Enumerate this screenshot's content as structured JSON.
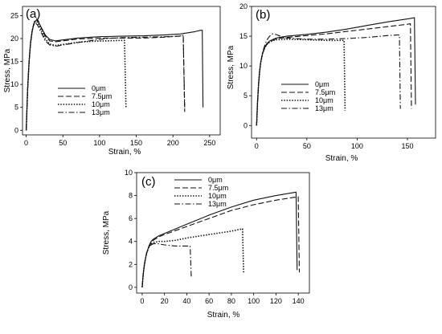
{
  "legend": [
    "0μm",
    "7.5μm",
    "10μm",
    "13μm"
  ],
  "chart_data": [
    {
      "type": "line",
      "panel_label": "(a)",
      "xlabel": "Strain, %",
      "ylabel": "Stress, MPa",
      "xlim": [
        -5,
        260
      ],
      "ylim": [
        -1,
        27
      ],
      "xticks": [
        0,
        50,
        100,
        150,
        200,
        250
      ],
      "yticks": [
        0,
        5,
        10,
        15,
        20,
        25
      ],
      "legend_position": "center-left",
      "series": [
        {
          "name": "0μm",
          "style": "solid",
          "points": [
            [
              0,
              0
            ],
            [
              2,
              9
            ],
            [
              4,
              15
            ],
            [
              6,
              19
            ],
            [
              8,
              21.5
            ],
            [
              10,
              23
            ],
            [
              12,
              23.8
            ],
            [
              14,
              24
            ],
            [
              16,
              23.8
            ],
            [
              18,
              23.2
            ],
            [
              22,
              22
            ],
            [
              26,
              20.8
            ],
            [
              32,
              19.8
            ],
            [
              40,
              19.5
            ],
            [
              50,
              19.7
            ],
            [
              70,
              20.1
            ],
            [
              100,
              20.4
            ],
            [
              130,
              20.5
            ],
            [
              160,
              20.6
            ],
            [
              190,
              20.8
            ],
            [
              210,
              21
            ],
            [
              230,
              21.5
            ],
            [
              238,
              21.8
            ],
            [
              240,
              21.8
            ],
            [
              241,
              5
            ]
          ]
        },
        {
          "name": "7.5μm",
          "style": "dashed",
          "points": [
            [
              0,
              0
            ],
            [
              2,
              9
            ],
            [
              4,
              15
            ],
            [
              6,
              19
            ],
            [
              8,
              21.5
            ],
            [
              10,
              23
            ],
            [
              12,
              24
            ],
            [
              14,
              24.3
            ],
            [
              16,
              24
            ],
            [
              18,
              23.3
            ],
            [
              22,
              21.8
            ],
            [
              26,
              20.5
            ],
            [
              32,
              19.5
            ],
            [
              40,
              19.3
            ],
            [
              50,
              19.5
            ],
            [
              70,
              19.9
            ],
            [
              100,
              20.1
            ],
            [
              130,
              20.1
            ],
            [
              160,
              20.1
            ],
            [
              190,
              20.3
            ],
            [
              212,
              20.6
            ],
            [
              214,
              20.6
            ],
            [
              216,
              4
            ]
          ]
        },
        {
          "name": "10μm",
          "style": "dotted",
          "points": [
            [
              0,
              0
            ],
            [
              2,
              9
            ],
            [
              4,
              15
            ],
            [
              6,
              19
            ],
            [
              8,
              21.5
            ],
            [
              10,
              23
            ],
            [
              12,
              23.6
            ],
            [
              14,
              23.8
            ],
            [
              16,
              23.4
            ],
            [
              18,
              22.7
            ],
            [
              22,
              21.3
            ],
            [
              26,
              19.9
            ],
            [
              32,
              18.8
            ],
            [
              40,
              18.5
            ],
            [
              50,
              18.7
            ],
            [
              70,
              19.2
            ],
            [
              90,
              19.4
            ],
            [
              110,
              19.5
            ],
            [
              130,
              19.6
            ],
            [
              134,
              19.6
            ],
            [
              136,
              5
            ]
          ]
        },
        {
          "name": "13μm",
          "style": "dashdot",
          "points": [
            [
              0,
              0
            ],
            [
              2,
              9
            ],
            [
              4,
              15
            ],
            [
              6,
              19
            ],
            [
              8,
              21.5
            ],
            [
              10,
              22.8
            ],
            [
              12,
              23.3
            ],
            [
              14,
              23.2
            ],
            [
              16,
              22.8
            ],
            [
              18,
              22.1
            ],
            [
              22,
              20.8
            ],
            [
              26,
              19.5
            ],
            [
              32,
              18.6
            ],
            [
              40,
              18.3
            ],
            [
              50,
              18.6
            ],
            [
              70,
              19.1
            ],
            [
              90,
              19.6
            ],
            [
              110,
              20
            ],
            [
              130,
              20.2
            ],
            [
              160,
              20.3
            ],
            [
              190,
              20.4
            ],
            [
              210,
              20.5
            ],
            [
              214,
              20.7
            ],
            [
              216,
              5
            ]
          ]
        }
      ]
    },
    {
      "type": "line",
      "panel_label": "(b)",
      "xlabel": "Strain, %",
      "ylabel": "Stress, MPa",
      "xlim": [
        -5,
        170
      ],
      "ylim": [
        -0.5,
        20
      ],
      "xticks": [
        0,
        50,
        100,
        150
      ],
      "yticks": [
        0,
        5,
        10,
        15,
        20
      ],
      "legend_position": "center-right",
      "series": [
        {
          "name": "0μm",
          "style": "solid",
          "points": [
            [
              0,
              0
            ],
            [
              1,
              4
            ],
            [
              2,
              7
            ],
            [
              3,
              9
            ],
            [
              4,
              10.5
            ],
            [
              6,
              12.2
            ],
            [
              8,
              13.1
            ],
            [
              10,
              13.7
            ],
            [
              13,
              14.2
            ],
            [
              17,
              14.5
            ],
            [
              20,
              14.7
            ],
            [
              30,
              15
            ],
            [
              50,
              15.3
            ],
            [
              70,
              15.7
            ],
            [
              90,
              16.2
            ],
            [
              110,
              16.8
            ],
            [
              130,
              17.4
            ],
            [
              150,
              17.9
            ],
            [
              157,
              18.1
            ],
            [
              158,
              3.5
            ]
          ]
        },
        {
          "name": "7.5μm",
          "style": "dashed",
          "points": [
            [
              0,
              0
            ],
            [
              1,
              4
            ],
            [
              2,
              7
            ],
            [
              3,
              9
            ],
            [
              4,
              10.5
            ],
            [
              6,
              12.1
            ],
            [
              8,
              13
            ],
            [
              10,
              13.6
            ],
            [
              13,
              14.1
            ],
            [
              17,
              14.4
            ],
            [
              20,
              14.6
            ],
            [
              30,
              14.8
            ],
            [
              50,
              15.1
            ],
            [
              70,
              15.4
            ],
            [
              90,
              15.8
            ],
            [
              110,
              16.2
            ],
            [
              130,
              16.6
            ],
            [
              150,
              17
            ],
            [
              153,
              17.1
            ],
            [
              154,
              2.8
            ]
          ]
        },
        {
          "name": "10μm",
          "style": "dotted",
          "points": [
            [
              0,
              0
            ],
            [
              1,
              4
            ],
            [
              2,
              7
            ],
            [
              3,
              9
            ],
            [
              4,
              10.5
            ],
            [
              6,
              12.1
            ],
            [
              8,
              13
            ],
            [
              10,
              13.6
            ],
            [
              13,
              14
            ],
            [
              17,
              14.3
            ],
            [
              20,
              14.4
            ],
            [
              30,
              14.5
            ],
            [
              50,
              14.4
            ],
            [
              70,
              14.3
            ],
            [
              85,
              14.3
            ],
            [
              87,
              14.3
            ],
            [
              88,
              2.5
            ]
          ]
        },
        {
          "name": "13μm",
          "style": "dashdot",
          "points": [
            [
              0,
              0
            ],
            [
              1,
              4
            ],
            [
              2,
              7
            ],
            [
              3,
              9
            ],
            [
              4,
              10.5
            ],
            [
              6,
              12.3
            ],
            [
              8,
              13.4
            ],
            [
              10,
              14.3
            ],
            [
              13,
              15
            ],
            [
              16,
              15.4
            ],
            [
              19,
              15.3
            ],
            [
              22,
              15.1
            ],
            [
              30,
              14.7
            ],
            [
              50,
              14.5
            ],
            [
              70,
              14.5
            ],
            [
              90,
              14.6
            ],
            [
              110,
              14.8
            ],
            [
              130,
              15.1
            ],
            [
              140,
              15.2
            ],
            [
              142,
              15.2
            ],
            [
              143,
              2.8
            ]
          ]
        }
      ]
    },
    {
      "type": "line",
      "panel_label": "(c)",
      "xlabel": "Strain, %",
      "ylabel": "Stress, MPa",
      "xlim": [
        -5,
        150
      ],
      "ylim": [
        -0.5,
        10
      ],
      "xticks": [
        0,
        20,
        40,
        60,
        80,
        100,
        120,
        140
      ],
      "yticks": [
        0,
        2,
        4,
        6,
        8,
        10
      ],
      "legend_position": "top-right",
      "series": [
        {
          "name": "0μm",
          "style": "solid",
          "points": [
            [
              0,
              0
            ],
            [
              1,
              1.2
            ],
            [
              2,
              2
            ],
            [
              4,
              3
            ],
            [
              6,
              3.6
            ],
            [
              8,
              4
            ],
            [
              10,
              4.2
            ],
            [
              15,
              4.5
            ],
            [
              20,
              4.7
            ],
            [
              40,
              5.5
            ],
            [
              60,
              6.3
            ],
            [
              80,
              7
            ],
            [
              100,
              7.6
            ],
            [
              120,
              8
            ],
            [
              138,
              8.3
            ],
            [
              139,
              1.5
            ]
          ]
        },
        {
          "name": "7.5μm",
          "style": "dashed",
          "points": [
            [
              0,
              0
            ],
            [
              1,
              1.2
            ],
            [
              2,
              2
            ],
            [
              4,
              3
            ],
            [
              6,
              3.5
            ],
            [
              8,
              3.9
            ],
            [
              10,
              4.1
            ],
            [
              15,
              4.4
            ],
            [
              20,
              4.6
            ],
            [
              40,
              5.3
            ],
            [
              60,
              6
            ],
            [
              80,
              6.7
            ],
            [
              100,
              7.2
            ],
            [
              120,
              7.6
            ],
            [
              140,
              7.9
            ],
            [
              141,
              1.3
            ]
          ]
        },
        {
          "name": "10μm",
          "style": "dotted",
          "points": [
            [
              0,
              0
            ],
            [
              1,
              1.2
            ],
            [
              2,
              2
            ],
            [
              4,
              3
            ],
            [
              6,
              3.5
            ],
            [
              8,
              3.8
            ],
            [
              10,
              3.9
            ],
            [
              15,
              4
            ],
            [
              20,
              4
            ],
            [
              30,
              4.1
            ],
            [
              40,
              4.3
            ],
            [
              60,
              4.6
            ],
            [
              80,
              4.9
            ],
            [
              90,
              5.1
            ],
            [
              91,
              1.2
            ]
          ]
        },
        {
          "name": "13μm",
          "style": "dashdot",
          "points": [
            [
              0,
              0
            ],
            [
              1,
              1.2
            ],
            [
              2,
              2
            ],
            [
              4,
              3
            ],
            [
              6,
              3.5
            ],
            [
              8,
              3.7
            ],
            [
              10,
              3.8
            ],
            [
              14,
              3.8
            ],
            [
              20,
              3.7
            ],
            [
              30,
              3.6
            ],
            [
              43,
              3.6
            ],
            [
              44,
              0.9
            ]
          ]
        }
      ]
    }
  ]
}
